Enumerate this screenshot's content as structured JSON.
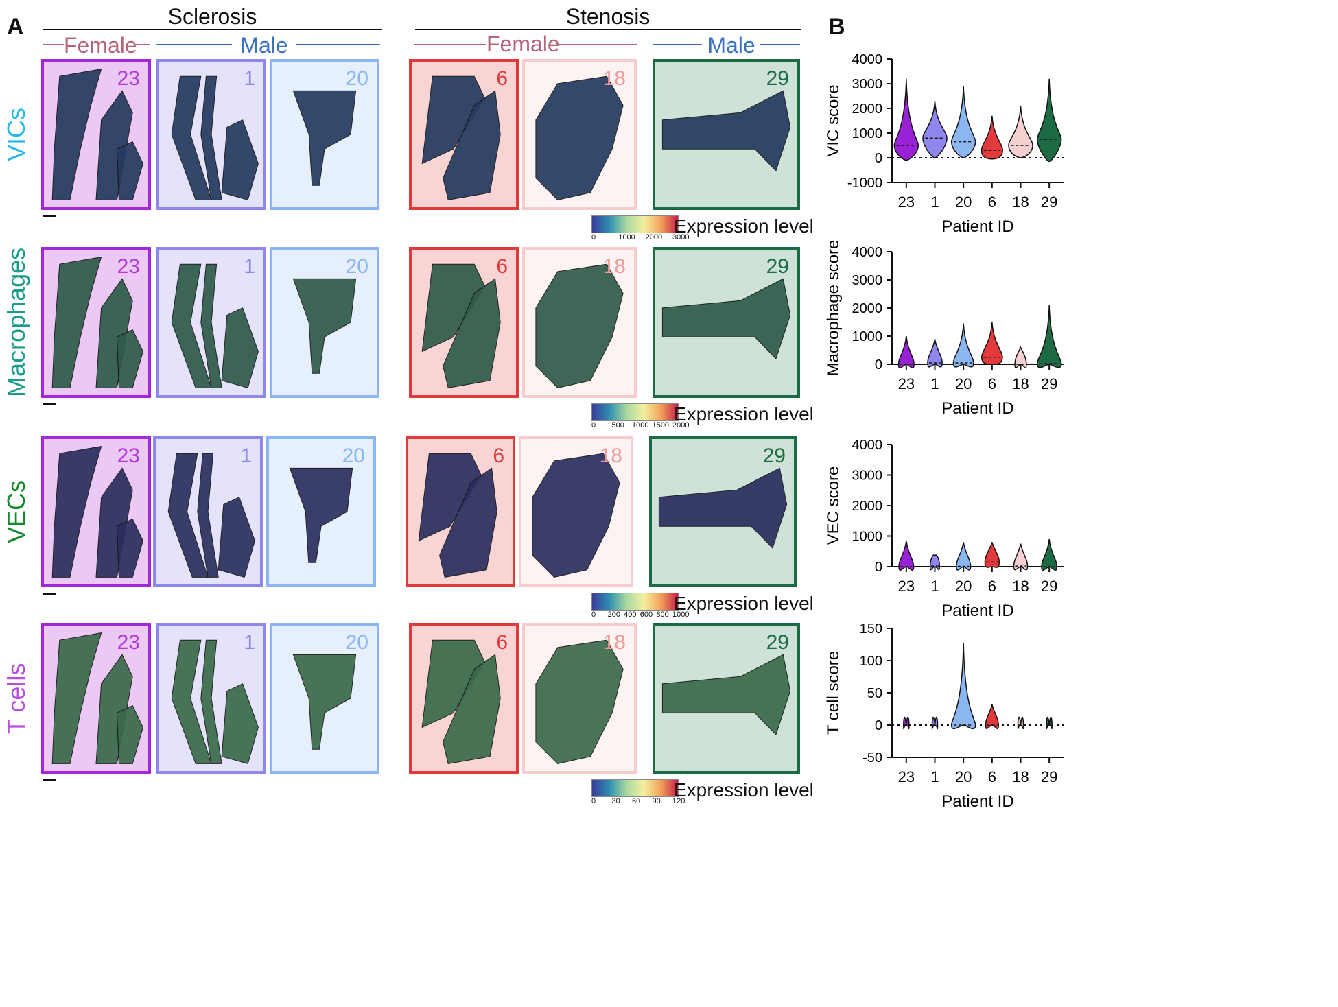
{
  "panelA": {
    "letter": "A",
    "groups": [
      {
        "title": "Sclerosis",
        "female": "Female",
        "male": "Male"
      },
      {
        "title": "Stenosis",
        "female": "Female",
        "male": "Male"
      }
    ],
    "rows": [
      {
        "label": "VICs",
        "color": "#27b8e6",
        "colorbar_ticks": [
          "0",
          "1000",
          "2000",
          "3000"
        ]
      },
      {
        "label": "Macrophages",
        "color": "#1a9c8c",
        "colorbar_ticks": [
          "0",
          "500",
          "1000",
          "1500",
          "2000"
        ]
      },
      {
        "label": "VECs",
        "color": "#138a2e",
        "colorbar_ticks": [
          "0",
          "200",
          "400",
          "600",
          "800",
          "1000"
        ]
      },
      {
        "label": "T cells",
        "color": "#b84fe0",
        "colorbar_ticks": [
          "0",
          "30",
          "60",
          "90",
          "120"
        ]
      }
    ],
    "patients": [
      {
        "id": "23",
        "border": "#a228d8",
        "fill": "#ecc8f4",
        "text": "#b436dc"
      },
      {
        "id": "1",
        "border": "#8f86ee",
        "fill": "#e5e3fb",
        "text": "#8f86ee"
      },
      {
        "id": "20",
        "border": "#8cb6f2",
        "fill": "#e6effc",
        "text": "#8cb6f2"
      },
      {
        "id": "6",
        "border": "#e23a3a",
        "fill": "#f8d4d4",
        "text": "#e23a3a"
      },
      {
        "id": "18",
        "border": "#f6cccc",
        "fill": "#fdf3f3",
        "text": "#ef9a9a"
      },
      {
        "id": "29",
        "border": "#1d6b45",
        "fill": "#cfe2d8",
        "text": "#1d6b45"
      }
    ],
    "expression_label": "Expression level",
    "female_color": "#b5657a",
    "male_color": "#3a72bf"
  },
  "panelB": {
    "letter": "B",
    "xlabel": "Patient ID",
    "categories": [
      "23",
      "1",
      "20",
      "6",
      "18",
      "29"
    ],
    "colors": [
      "#9a22d6",
      "#8f86ee",
      "#8cb6f2",
      "#e23a3a",
      "#f6d0d0",
      "#1d6b45"
    ]
  },
  "chart_data": [
    {
      "type": "violin",
      "ylabel": "VIC score",
      "ylim": [
        -1000,
        4000
      ],
      "yticks": [
        "4000",
        "3000",
        "2000",
        "1000",
        "0",
        "-1000"
      ],
      "categories": [
        "23",
        "1",
        "20",
        "6",
        "18",
        "29"
      ],
      "median": [
        500,
        800,
        650,
        300,
        500,
        750
      ],
      "max": [
        3200,
        2300,
        2900,
        1700,
        2100,
        3200
      ],
      "min": [
        -100,
        0,
        0,
        -50,
        0,
        -150
      ]
    },
    {
      "type": "violin",
      "ylabel": "Macrophage score",
      "ylim": [
        0,
        4000
      ],
      "yticks": [
        "4000",
        "3000",
        "2000",
        "1000",
        "0"
      ],
      "categories": [
        "23",
        "1",
        "20",
        "6",
        "18",
        "29"
      ],
      "median": [
        0,
        50,
        50,
        250,
        0,
        20
      ],
      "max": [
        1000,
        900,
        1450,
        1500,
        600,
        2100
      ],
      "min": [
        0,
        0,
        0,
        0,
        0,
        0
      ]
    },
    {
      "type": "violin",
      "ylabel": "VEC score",
      "ylim": [
        0,
        4000
      ],
      "yticks": [
        "4000",
        "3000",
        "2000",
        "1000",
        "0"
      ],
      "categories": [
        "23",
        "1",
        "20",
        "6",
        "18",
        "29"
      ],
      "median": [
        0,
        20,
        10,
        150,
        20,
        0
      ],
      "max": [
        850,
        350,
        800,
        800,
        750,
        900
      ],
      "min": [
        0,
        0,
        0,
        0,
        0,
        0
      ]
    },
    {
      "type": "violin",
      "ylabel": "T cell score",
      "ylim": [
        -50,
        150
      ],
      "yticks": [
        "150",
        "100",
        "50",
        "0",
        "-50"
      ],
      "categories": [
        "23",
        "1",
        "20",
        "6",
        "18",
        "29"
      ],
      "median": [
        0,
        0,
        0,
        0,
        0,
        0
      ],
      "max": [
        0,
        0,
        127,
        32,
        0,
        0
      ],
      "min": [
        0,
        0,
        0,
        0,
        0,
        0
      ]
    }
  ]
}
